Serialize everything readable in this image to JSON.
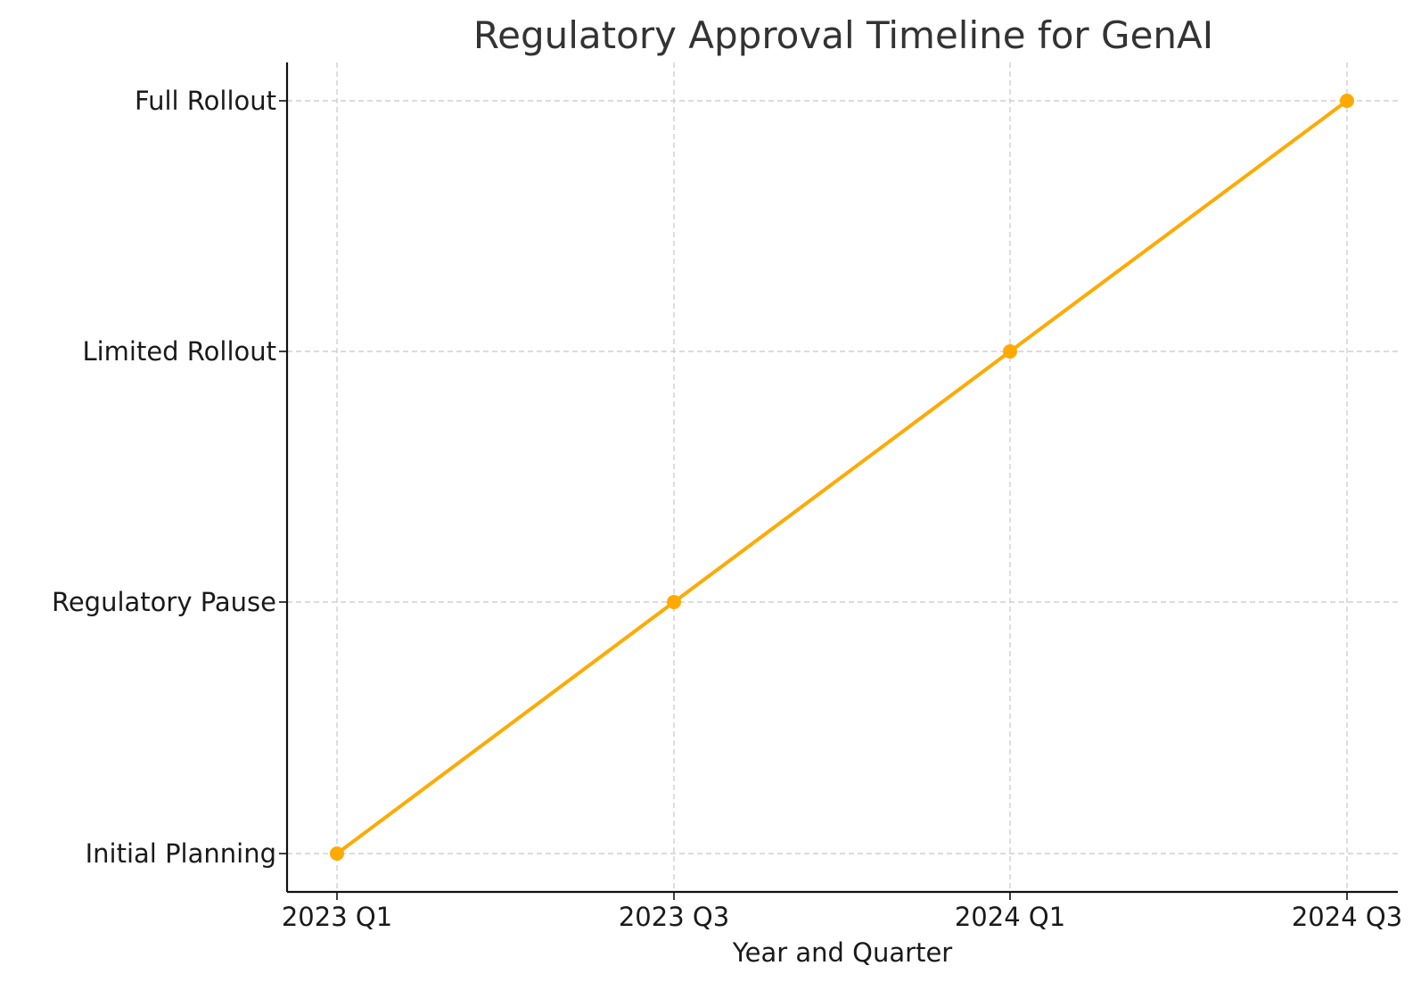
{
  "chart_data": {
    "type": "line",
    "title": "Regulatory Approval Timeline for GenAI",
    "xlabel": "Year and Quarter",
    "ylabel": "",
    "categories": [
      "2023 Q1",
      "2023 Q3",
      "2024 Q1",
      "2024 Q3"
    ],
    "y_categories": [
      "Initial Planning",
      "Regulatory Pause",
      "Limited Rollout",
      "Full Rollout"
    ],
    "series": [
      {
        "values": [
          "Initial Planning",
          "Regulatory Pause",
          "Limited Rollout",
          "Full Rollout"
        ],
        "color": "#FFAA00"
      }
    ],
    "grid": true,
    "grid_style": "dashed",
    "marker": "circle"
  }
}
